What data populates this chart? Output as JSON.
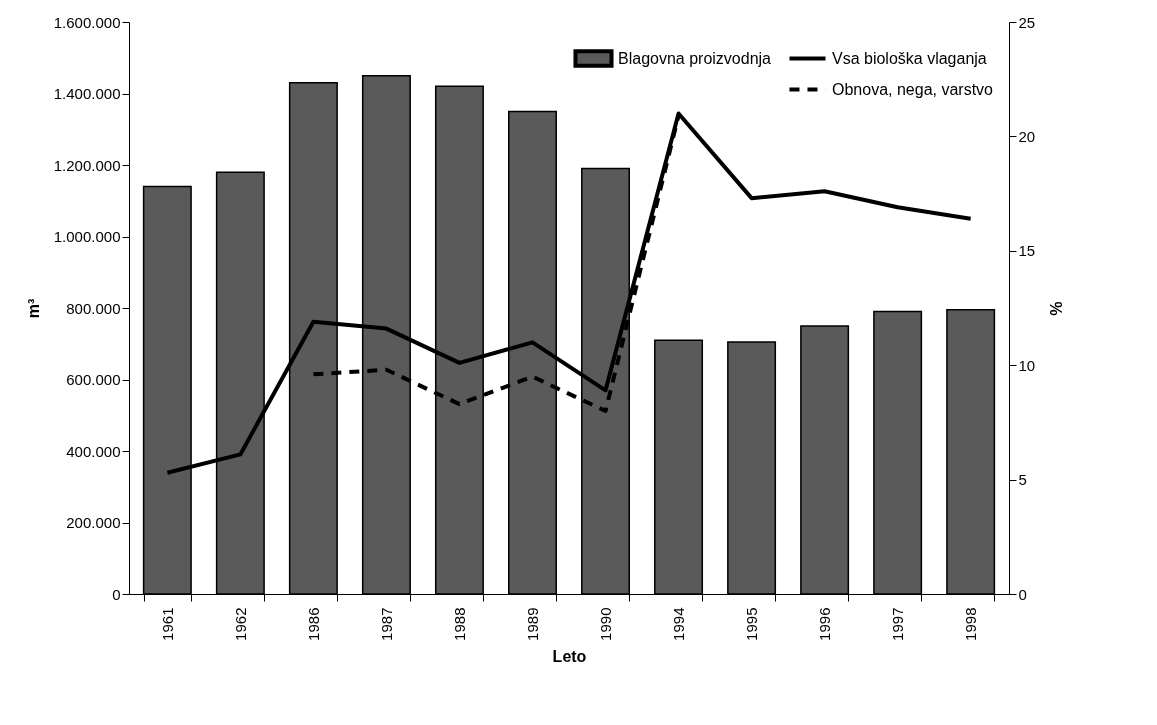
{
  "chart_data": {
    "type": "bar",
    "xlabel": "Leto",
    "ylabel": "m³",
    "y2label": "%",
    "categories": [
      "1961",
      "1962",
      "1986",
      "1987",
      "1988",
      "1989",
      "1990",
      "1994",
      "1995",
      "1996",
      "1997",
      "1998"
    ],
    "series": [
      {
        "name": "Blagovna proizvodnja",
        "color": "#5a5a5a",
        "values": [
          1140000,
          1180000,
          1430000,
          1450000,
          1420000,
          1350000,
          1190000,
          710000,
          705000,
          750000,
          790000,
          795000
        ]
      },
      {
        "name": "Vsa biološka vlaganja",
        "type": "line",
        "axis": "y2",
        "color": "#000000",
        "line_style": "solid",
        "values": [
          5.3,
          6.1,
          11.9,
          11.6,
          10.1,
          11.0,
          8.9,
          21.0,
          17.3,
          17.6,
          16.9,
          16.4
        ]
      },
      {
        "name": "Obnova, nega, varstvo",
        "type": "line",
        "axis": "y2",
        "color": "#000000",
        "line_style": "dashed",
        "values": [
          null,
          null,
          9.6,
          9.8,
          8.3,
          9.5,
          8.0,
          20.9,
          null,
          null,
          null,
          null
        ]
      }
    ],
    "ylim": [
      0,
      1600000
    ],
    "yticks": [
      {
        "value": 0,
        "label": "0"
      },
      {
        "value": 200000,
        "label": "200.000"
      },
      {
        "value": 400000,
        "label": "400.000"
      },
      {
        "value": 600000,
        "label": "600.000"
      },
      {
        "value": 800000,
        "label": "800.000"
      },
      {
        "value": 1000000,
        "label": "1.000.000"
      },
      {
        "value": 1200000,
        "label": "1.200.000"
      },
      {
        "value": 1400000,
        "label": "1.400.000"
      },
      {
        "value": 1600000,
        "label": "1.600.000"
      }
    ],
    "y2lim": [
      0,
      25
    ],
    "y2ticks": [
      0,
      5,
      10,
      15,
      20,
      25
    ],
    "legend": "top right",
    "grid": false,
    "marker": "none"
  }
}
